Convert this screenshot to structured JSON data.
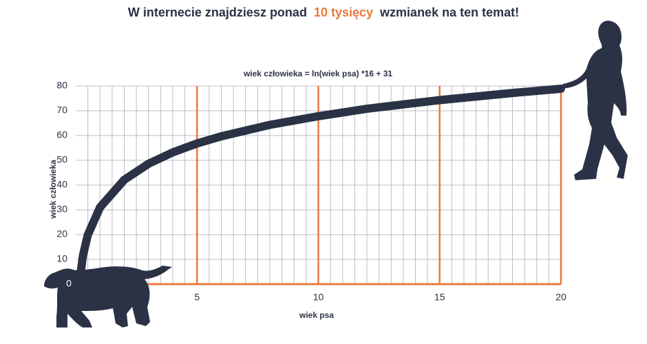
{
  "chart_data": {
    "type": "line",
    "title": [
      "W internecie znajdziesz ponad",
      "10 tysięcy",
      "wzmianek na ten temat!"
    ],
    "subtitle": "wiek człowieka = ln(wiek psa) *16 + 31",
    "x_label": "wiek psa",
    "y_label": "wiek człowieka",
    "x": [
      0.15,
      0.3,
      0.5,
      1,
      2,
      3,
      4,
      5,
      6,
      8,
      10,
      12,
      15,
      18,
      20
    ],
    "values": [
      0.6,
      11.7,
      19.9,
      31,
      42.1,
      48.6,
      53.2,
      56.8,
      59.7,
      64.3,
      67.8,
      70.8,
      74.3,
      77.2,
      78.9
    ],
    "color": "#2b3245",
    "highlight_color": "#e8793a",
    "xlim": [
      0,
      20
    ],
    "ylim": [
      0,
      80
    ],
    "xticks": [
      0,
      5,
      10,
      15,
      20
    ],
    "yticks": [
      10,
      20,
      30,
      40,
      50,
      60,
      70,
      80
    ],
    "grid": true
  }
}
